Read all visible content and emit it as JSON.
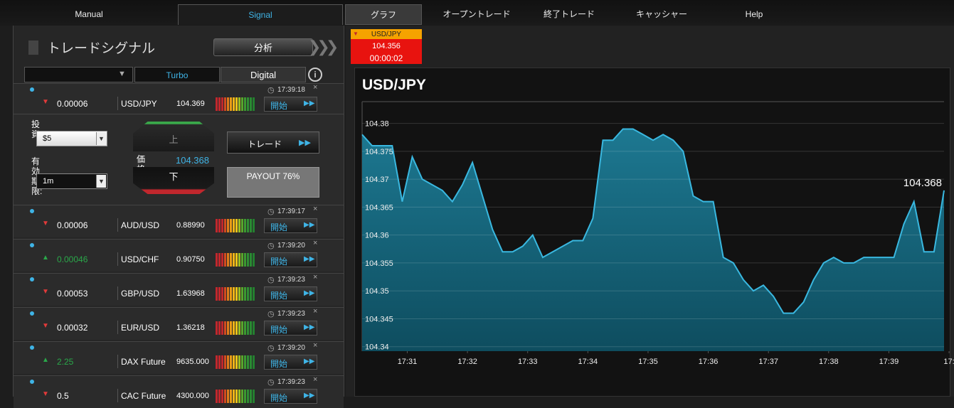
{
  "nav": {
    "tabs": [
      "Manual",
      "Signal",
      "グラフ",
      "オープントレード",
      "終了トレード",
      "キャッシャー",
      "Help"
    ]
  },
  "signals_panel": {
    "title": "トレードシグナル",
    "analyze_button": "分析",
    "tabs": [
      "Turbo",
      "Digital"
    ],
    "rows": [
      {
        "time": "17:39:18",
        "direction": "down",
        "change": "0.00006",
        "asset": "USD/JPY",
        "price": "104.369",
        "button": "開始"
      },
      {
        "time": "17:39:17",
        "direction": "down",
        "change": "0.00006",
        "asset": "AUD/USD",
        "price": "0.88990",
        "button": "開始"
      },
      {
        "time": "17:39:20",
        "direction": "up",
        "change": "0.00046",
        "asset": "USD/CHF",
        "price": "0.90750",
        "button": "開始"
      },
      {
        "time": "17:39:23",
        "direction": "down",
        "change": "0.00053",
        "asset": "GBP/USD",
        "price": "1.63968",
        "button": "開始"
      },
      {
        "time": "17:39:23",
        "direction": "down",
        "change": "0.00032",
        "asset": "EUR/USD",
        "price": "1.36218",
        "button": "開始"
      },
      {
        "time": "17:39:20",
        "direction": "up",
        "change": "2.25",
        "asset": "DAX Future",
        "price": "9635.000",
        "button": "開始"
      },
      {
        "time": "17:39:23",
        "direction": "down",
        "change": "0.5",
        "asset": "CAC Future",
        "price": "4300.000",
        "button": "開始"
      }
    ],
    "trade_form": {
      "investment_label": "投資:",
      "investment": "$5",
      "expiry_label": "有効期限:",
      "expiry": "1m",
      "up": "上",
      "down": "下",
      "price_label": "価格:",
      "price": "104.368",
      "trade_button": "トレード",
      "payout": "PAYOUT 76%"
    }
  },
  "asset_tab": {
    "asset": "USD/JPY",
    "price": "104.356",
    "timer": "00:00:02"
  },
  "chart_data": {
    "type": "area",
    "title": "USD/JPY",
    "last_label": "104.368",
    "color": "#3ab8e0",
    "values": [
      104.378,
      104.376,
      104.376,
      104.376,
      104.366,
      104.374,
      104.37,
      104.369,
      104.368,
      104.366,
      104.369,
      104.373,
      104.367,
      104.361,
      104.357,
      104.357,
      104.358,
      104.36,
      104.356,
      104.357,
      104.358,
      104.359,
      104.359,
      104.363,
      104.377,
      104.377,
      104.379,
      104.379,
      104.378,
      104.377,
      104.378,
      104.377,
      104.375,
      104.367,
      104.366,
      104.366,
      104.356,
      104.355,
      104.352,
      104.35,
      104.351,
      104.349,
      104.346,
      104.346,
      104.348,
      104.352,
      104.355,
      104.356,
      104.355,
      104.355,
      104.356,
      104.356,
      104.356,
      104.356,
      104.362,
      104.366,
      104.357,
      104.357,
      104.368
    ],
    "ylim": [
      104.3392,
      104.3839
    ],
    "yticks": [
      104.34,
      104.345,
      104.35,
      104.355,
      104.36,
      104.365,
      104.37,
      104.375,
      104.38
    ],
    "xlim": [
      0,
      58
    ],
    "xticks": [
      {
        "value": 4.5,
        "label": "17:31"
      },
      {
        "value": 10.5,
        "label": "17:32"
      },
      {
        "value": 16.5,
        "label": "17:33"
      },
      {
        "value": 22.5,
        "label": "17:34"
      },
      {
        "value": 28.5,
        "label": "17:35"
      },
      {
        "value": 34.5,
        "label": "17:36"
      },
      {
        "value": 40.5,
        "label": "17:37"
      },
      {
        "value": 46.5,
        "label": "17:38"
      },
      {
        "value": 52.5,
        "label": "17:39"
      },
      {
        "value": 58.5,
        "label": "17:"
      }
    ],
    "grid": true
  }
}
